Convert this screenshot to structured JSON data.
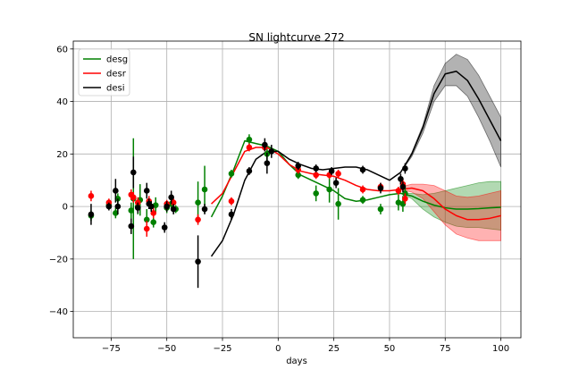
{
  "chart_data": {
    "type": "line",
    "title": "SN lightcurve 272",
    "xlabel": "days",
    "ylabel": "",
    "xlim": [
      -92,
      109
    ],
    "ylim": [
      -50,
      63
    ],
    "xticks": [
      -75,
      -50,
      -25,
      0,
      25,
      50,
      75,
      100
    ],
    "yticks": [
      -40,
      -20,
      0,
      20,
      40,
      60
    ],
    "xtick_labels": [
      "−75",
      "−50",
      "−25",
      "0",
      "25",
      "50",
      "75",
      "100"
    ],
    "ytick_labels": [
      "−40",
      "−20",
      "0",
      "20",
      "40",
      "60"
    ],
    "grid": true,
    "legend_position": "top-left",
    "series": [
      {
        "name": "desg",
        "color": "#008000",
        "model": {
          "x": [
            -30,
            -25,
            -20,
            -15,
            -10,
            -5,
            0,
            5,
            10,
            15,
            20,
            25,
            30,
            35,
            40,
            45,
            50,
            55,
            60,
            65,
            70,
            75,
            80,
            85,
            90,
            95,
            100
          ],
          "y": [
            -4,
            4,
            14,
            25,
            24,
            23,
            21,
            16,
            12,
            10,
            8,
            6,
            3,
            2,
            2.5,
            3.5,
            4.5,
            5,
            4,
            2,
            0.5,
            -0.5,
            -1,
            -1,
            -0.8,
            -0.5,
            -0.3
          ],
          "band_lower": [
            null,
            null,
            null,
            null,
            null,
            null,
            null,
            null,
            null,
            null,
            null,
            null,
            null,
            null,
            null,
            null,
            null,
            5,
            3,
            -1,
            -4,
            -6,
            -7.5,
            -8,
            -8,
            -8.5,
            -9
          ],
          "band_upper": [
            null,
            null,
            null,
            null,
            null,
            null,
            null,
            null,
            null,
            null,
            null,
            null,
            null,
            null,
            null,
            null,
            null,
            5,
            5,
            4.5,
            5,
            6,
            7,
            8,
            9,
            9.5,
            9.5
          ]
        },
        "points": [
          {
            "x": -84,
            "y": -3.5,
            "err": 2
          },
          {
            "x": -76,
            "y": 0.5,
            "err": 1.5
          },
          {
            "x": -73,
            "y": -2.5,
            "err": 2
          },
          {
            "x": -72,
            "y": 3,
            "err": 2
          },
          {
            "x": -66,
            "y": -1.5,
            "err": 3
          },
          {
            "x": -65,
            "y": 3,
            "err": 23
          },
          {
            "x": -63,
            "y": 0,
            "err": 3
          },
          {
            "x": -62,
            "y": 2.5,
            "err": 6
          },
          {
            "x": -59,
            "y": -5,
            "err": 4
          },
          {
            "x": -56,
            "y": -6,
            "err": 2
          },
          {
            "x": -55,
            "y": 0.5,
            "err": 3
          },
          {
            "x": -50,
            "y": -0.5,
            "err": 2
          },
          {
            "x": -48,
            "y": 1,
            "err": 2
          },
          {
            "x": -46,
            "y": -1,
            "err": 1.5
          },
          {
            "x": -36,
            "y": 1.5,
            "err": 8
          },
          {
            "x": -33,
            "y": 6.5,
            "err": 9
          },
          {
            "x": -21,
            "y": 12.5,
            "err": 1.5
          },
          {
            "x": -13,
            "y": 25.5,
            "err": 2
          },
          {
            "x": -5,
            "y": 20,
            "err": 3
          },
          {
            "x": 9,
            "y": 12,
            "err": 1.5
          },
          {
            "x": 17,
            "y": 5,
            "err": 3
          },
          {
            "x": 23,
            "y": 6.5,
            "err": 5
          },
          {
            "x": 27,
            "y": 1,
            "err": 6
          },
          {
            "x": 38,
            "y": 2.5,
            "err": 1.5
          },
          {
            "x": 46,
            "y": -1,
            "err": 2
          },
          {
            "x": 54,
            "y": 1.5,
            "err": 3
          },
          {
            "x": 56,
            "y": 1,
            "err": 3
          },
          {
            "x": 57,
            "y": 5,
            "err": 3
          }
        ]
      },
      {
        "name": "desr",
        "color": "#ff0000",
        "model": {
          "x": [
            -30,
            -25,
            -20,
            -15,
            -10,
            -5,
            0,
            5,
            10,
            15,
            20,
            25,
            30,
            35,
            40,
            45,
            50,
            55,
            60,
            65,
            70,
            75,
            80,
            85,
            90,
            95,
            100
          ],
          "y": [
            1,
            5,
            13,
            21,
            22.5,
            22.5,
            20,
            16,
            13.5,
            12.5,
            12,
            11.5,
            10,
            8,
            6.5,
            6,
            6,
            6.5,
            7,
            6,
            3,
            -1,
            -3.5,
            -5,
            -5,
            -4.5,
            -3.5
          ],
          "band_lower": [
            null,
            null,
            null,
            null,
            null,
            null,
            null,
            null,
            null,
            null,
            null,
            null,
            null,
            null,
            null,
            null,
            null,
            6.5,
            5.5,
            3,
            -2,
            -7,
            -10.5,
            -12,
            -13,
            -13,
            -13
          ],
          "band_upper": [
            null,
            null,
            null,
            null,
            null,
            null,
            null,
            null,
            null,
            null,
            null,
            null,
            null,
            null,
            null,
            null,
            null,
            7.5,
            8.5,
            8.5,
            8,
            6,
            4,
            3.5,
            4,
            5,
            6
          ]
        },
        "points": [
          {
            "x": -84,
            "y": 4,
            "err": 2
          },
          {
            "x": -76,
            "y": 1.5,
            "err": 1.5
          },
          {
            "x": -66,
            "y": 4.5,
            "err": 2
          },
          {
            "x": -65,
            "y": 3.5,
            "err": 2
          },
          {
            "x": -63,
            "y": 1.5,
            "err": 2
          },
          {
            "x": -59,
            "y": -8.5,
            "err": 3
          },
          {
            "x": -58,
            "y": 2,
            "err": 2
          },
          {
            "x": -56,
            "y": -2.5,
            "err": 2
          },
          {
            "x": -50,
            "y": 1,
            "err": 1.5
          },
          {
            "x": -47,
            "y": 1.5,
            "err": 1.5
          },
          {
            "x": -36,
            "y": -5,
            "err": 2
          },
          {
            "x": -21,
            "y": 2,
            "err": 1.5
          },
          {
            "x": -13,
            "y": 22.5,
            "err": 1.5
          },
          {
            "x": -6,
            "y": 22.5,
            "err": 1.5
          },
          {
            "x": 9,
            "y": 14,
            "err": 1.5
          },
          {
            "x": 17,
            "y": 12,
            "err": 1.5
          },
          {
            "x": 23,
            "y": 12,
            "err": 1.5
          },
          {
            "x": 27,
            "y": 12.5,
            "err": 1.5
          },
          {
            "x": 38,
            "y": 6.5,
            "err": 1.5
          },
          {
            "x": 46,
            "y": 7.5,
            "err": 1.5
          },
          {
            "x": 54,
            "y": 6,
            "err": 1.5
          },
          {
            "x": 56,
            "y": 8.5,
            "err": 2
          },
          {
            "x": 57,
            "y": 3,
            "err": 2
          }
        ]
      },
      {
        "name": "desi",
        "color": "#000000",
        "model": {
          "x": [
            -30,
            -25,
            -20,
            -15,
            -10,
            -5,
            0,
            5,
            10,
            15,
            20,
            25,
            30,
            35,
            40,
            45,
            50,
            55,
            60,
            65,
            70,
            75,
            80,
            85,
            90,
            95,
            100
          ],
          "y": [
            -19,
            -13,
            -3,
            10,
            18,
            21,
            21,
            18,
            16,
            14.5,
            14,
            14.5,
            15,
            15,
            14,
            12,
            10,
            13,
            20,
            30,
            43,
            50.5,
            51.5,
            48,
            41,
            33,
            25
          ],
          "band_lower": [
            null,
            null,
            null,
            null,
            null,
            null,
            null,
            null,
            null,
            null,
            null,
            null,
            null,
            null,
            null,
            null,
            null,
            13,
            19,
            28,
            40,
            46,
            46,
            42,
            34,
            25,
            15
          ],
          "band_upper": [
            null,
            null,
            null,
            null,
            null,
            null,
            null,
            null,
            null,
            null,
            null,
            null,
            null,
            null,
            null,
            null,
            null,
            13,
            20.5,
            31,
            46,
            54.5,
            58,
            56,
            50,
            42,
            34
          ]
        },
        "points": [
          {
            "x": -84,
            "y": -3,
            "err": 4
          },
          {
            "x": -76,
            "y": 0,
            "err": 1.5
          },
          {
            "x": -73,
            "y": 6,
            "err": 4.5
          },
          {
            "x": -72,
            "y": 0,
            "err": 3
          },
          {
            "x": -66,
            "y": -7.5,
            "err": 3
          },
          {
            "x": -65,
            "y": 13,
            "err": 6
          },
          {
            "x": -63,
            "y": -0.5,
            "err": 2
          },
          {
            "x": -59,
            "y": 6,
            "err": 3
          },
          {
            "x": -58,
            "y": 1,
            "err": 2
          },
          {
            "x": -57,
            "y": 0,
            "err": 2
          },
          {
            "x": -51,
            "y": -8,
            "err": 2
          },
          {
            "x": -50,
            "y": 0,
            "err": 2
          },
          {
            "x": -48,
            "y": 3.5,
            "err": 2.5
          },
          {
            "x": -47,
            "y": -1,
            "err": 2
          },
          {
            "x": -36,
            "y": -21,
            "err": 10
          },
          {
            "x": -33,
            "y": -1,
            "err": 2
          },
          {
            "x": -21,
            "y": -3,
            "err": 2
          },
          {
            "x": -13,
            "y": 13.5,
            "err": 1.5
          },
          {
            "x": -6,
            "y": 23.5,
            "err": 2.5
          },
          {
            "x": -5,
            "y": 16.5,
            "err": 4
          },
          {
            "x": -3,
            "y": 21,
            "err": 2.5
          },
          {
            "x": 9,
            "y": 15.5,
            "err": 1.5
          },
          {
            "x": 17,
            "y": 14.5,
            "err": 1.5
          },
          {
            "x": 24,
            "y": 13.5,
            "err": 1.5
          },
          {
            "x": 26,
            "y": 9,
            "err": 2
          },
          {
            "x": 38,
            "y": 14,
            "err": 1.5
          },
          {
            "x": 46,
            "y": 7,
            "err": 2
          },
          {
            "x": 55,
            "y": 10.5,
            "err": 2
          },
          {
            "x": 56,
            "y": 7.5,
            "err": 2
          },
          {
            "x": 57,
            "y": 14.5,
            "err": 2
          }
        ]
      }
    ]
  }
}
